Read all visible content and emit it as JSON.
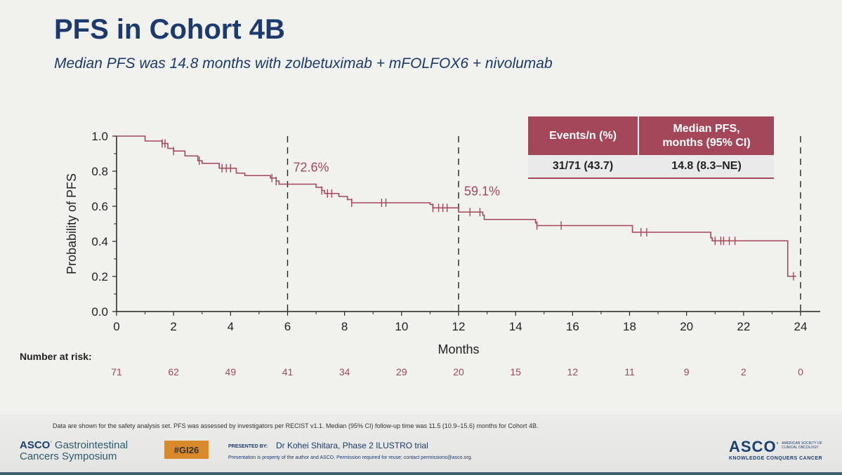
{
  "header": {
    "title": "PFS in Cohort 4B",
    "subtitle": "Median PFS was 14.8 months with zolbetuximab + mFOLFOX6 + nivolumab"
  },
  "stats_table": {
    "headers": [
      "Events/n (%)",
      "Median PFS,\nmonths (95% CI)"
    ],
    "values": [
      "31/71 (43.7)",
      "14.8 (8.3–NE)"
    ]
  },
  "risk_table": {
    "label": "Number at risk:",
    "times": [
      0,
      2,
      4,
      6,
      8,
      10,
      12,
      14,
      16,
      18,
      20,
      22,
      24
    ],
    "counts": [
      "71",
      "62",
      "49",
      "41",
      "34",
      "29",
      "20",
      "15",
      "12",
      "11",
      "9",
      "2",
      "0"
    ]
  },
  "chart_data": {
    "type": "line",
    "title": "PFS in Cohort 4B",
    "xlabel": "Months",
    "ylabel": "Probability of PFS",
    "xlim": [
      0,
      24
    ],
    "ylim": [
      0,
      1
    ],
    "xticks": [
      "0",
      "2",
      "4",
      "6",
      "8",
      "10",
      "12",
      "14",
      "16",
      "18",
      "20",
      "22",
      "24"
    ],
    "yticks": [
      "0.0",
      "0.2",
      "0.4",
      "0.6",
      "0.8",
      "1.0"
    ],
    "grid": false,
    "series": [
      {
        "color": "#a4475a",
        "step": [
          [
            0,
            1.0
          ],
          [
            1.0,
            0.972
          ],
          [
            1.6,
            0.958
          ],
          [
            1.8,
            0.93
          ],
          [
            2.0,
            0.915
          ],
          [
            2.4,
            0.887
          ],
          [
            2.85,
            0.86
          ],
          [
            3.0,
            0.845
          ],
          [
            3.6,
            0.817
          ],
          [
            4.2,
            0.789
          ],
          [
            4.5,
            0.775
          ],
          [
            5.4,
            0.761
          ],
          [
            5.6,
            0.744
          ],
          [
            5.7,
            0.726
          ],
          [
            7.0,
            0.708
          ],
          [
            7.2,
            0.69
          ],
          [
            7.3,
            0.673
          ],
          [
            7.8,
            0.656
          ],
          [
            8.1,
            0.638
          ],
          [
            8.25,
            0.62
          ],
          [
            11.0,
            0.61
          ],
          [
            11.1,
            0.591
          ],
          [
            12.0,
            0.567
          ],
          [
            12.85,
            0.549
          ],
          [
            12.9,
            0.525
          ],
          [
            14.7,
            0.505
          ],
          [
            14.75,
            0.49
          ],
          [
            18.1,
            0.452
          ],
          [
            20.85,
            0.42
          ],
          [
            20.9,
            0.403
          ],
          [
            23.5,
            0.403
          ],
          [
            23.55,
            0.201
          ],
          [
            23.85,
            0.201
          ]
        ],
        "censor": [
          1.6,
          1.7,
          2.0,
          2.9,
          3.7,
          3.85,
          4.0,
          5.45,
          5.6,
          7.2,
          7.4,
          7.55,
          8.25,
          9.3,
          9.45,
          11.1,
          11.3,
          11.45,
          11.6,
          12.4,
          12.75,
          14.75,
          15.6,
          18.4,
          18.6,
          21.0,
          21.2,
          21.3,
          21.5,
          21.7,
          23.75
        ],
        "landmarks": [
          {
            "x": 6,
            "y": 0.726,
            "label": "72.6%"
          },
          {
            "x": 12,
            "y": 0.591,
            "label": "59.1%"
          }
        ],
        "reference_lines_x": [
          6,
          12,
          24
        ]
      }
    ]
  }
}
